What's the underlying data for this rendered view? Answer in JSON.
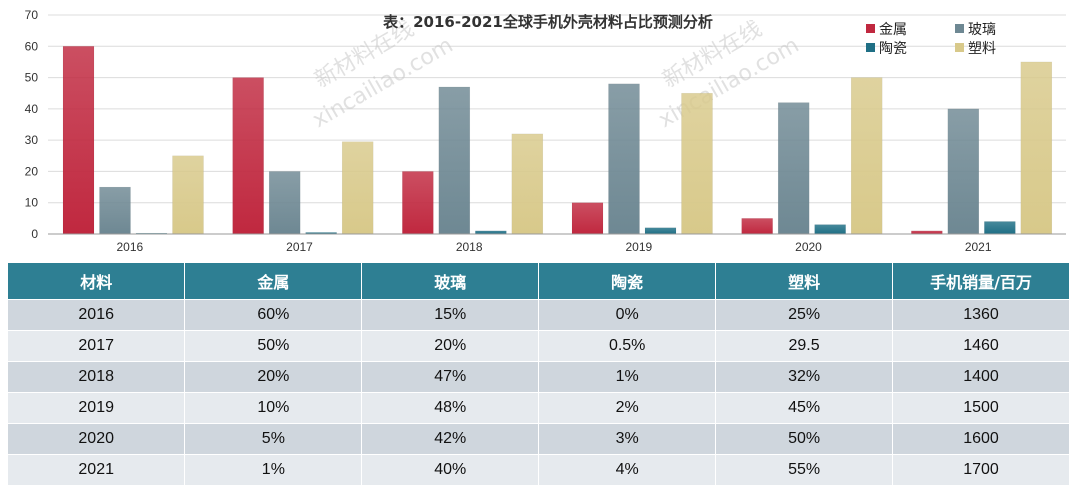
{
  "chart_data": {
    "type": "bar",
    "title": "表：2016-2021全球手机外壳材料占比预测分析",
    "categories": [
      "2016",
      "2017",
      "2018",
      "2019",
      "2020",
      "2021"
    ],
    "series": [
      {
        "name": "金属",
        "values": [
          60,
          50,
          20,
          10,
          5,
          1
        ],
        "color": "#c0283f"
      },
      {
        "name": "玻璃",
        "values": [
          15,
          20,
          47,
          48,
          42,
          40
        ],
        "color": "#6e8893"
      },
      {
        "name": "陶瓷",
        "values": [
          0,
          0.5,
          1,
          2,
          3,
          4
        ],
        "color": "#1f6f85"
      },
      {
        "name": "塑料",
        "values": [
          25,
          29.5,
          32,
          45,
          50,
          55
        ],
        "color": "#d8c98a"
      }
    ],
    "ylim": [
      0,
      70
    ],
    "yticks": [
      "0",
      "10",
      "20",
      "30",
      "40",
      "50",
      "60",
      "70"
    ],
    "grid": true,
    "legend": "top-right"
  },
  "watermarks": [
    "新材料在线",
    "xincailiao.com",
    "新材料在线",
    "xincailiao.com"
  ],
  "table": {
    "headers": [
      "材料",
      "金属",
      "玻璃",
      "陶瓷",
      "塑料",
      "手机销量/百万"
    ],
    "rows": [
      [
        "2016",
        "60%",
        "15%",
        "0%",
        "25%",
        "1360"
      ],
      [
        "2017",
        "50%",
        "20%",
        "0.5%",
        "29.5",
        "1460"
      ],
      [
        "2018",
        "20%",
        "47%",
        "1%",
        "32%",
        "1400"
      ],
      [
        "2019",
        "10%",
        "48%",
        "2%",
        "45%",
        "1500"
      ],
      [
        "2020",
        "5%",
        "42%",
        "3%",
        "50%",
        "1600"
      ],
      [
        "2021",
        "1%",
        "40%",
        "4%",
        "55%",
        "1700"
      ]
    ]
  }
}
